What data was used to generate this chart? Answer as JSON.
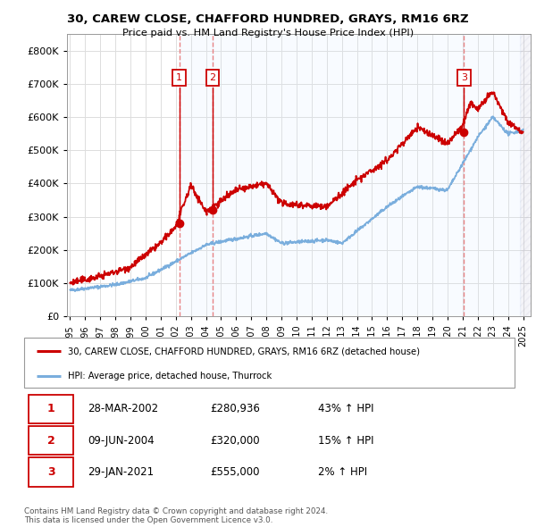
{
  "title": "30, CAREW CLOSE, CHAFFORD HUNDRED, GRAYS, RM16 6RZ",
  "subtitle": "Price paid vs. HM Land Registry's House Price Index (HPI)",
  "ylim": [
    0,
    850000
  ],
  "xlim": [
    1994.8,
    2025.5
  ],
  "yticks": [
    0,
    100000,
    200000,
    300000,
    400000,
    500000,
    600000,
    700000,
    800000
  ],
  "ytick_labels": [
    "£0",
    "£100K",
    "£200K",
    "£300K",
    "£400K",
    "£500K",
    "£600K",
    "£700K",
    "£800K"
  ],
  "sale_dates": [
    2002.23,
    2004.44,
    2021.08
  ],
  "sale_prices": [
    280936,
    320000,
    555000
  ],
  "sale_labels": [
    "1",
    "2",
    "3"
  ],
  "vline_color": "#e87070",
  "shade_color": "#ddeeff",
  "sale_color": "#cc0000",
  "hpi_color": "#7aaedd",
  "legend_sale_label": "30, CAREW CLOSE, CHAFFORD HUNDRED, GRAYS, RM16 6RZ (detached house)",
  "legend_hpi_label": "HPI: Average price, detached house, Thurrock",
  "table_rows": [
    [
      "1",
      "28-MAR-2002",
      "£280,936",
      "43% ↑ HPI"
    ],
    [
      "2",
      "09-JUN-2004",
      "£320,000",
      "15% ↑ HPI"
    ],
    [
      "3",
      "29-JAN-2021",
      "£555,000",
      "2% ↑ HPI"
    ]
  ],
  "footnote": "Contains HM Land Registry data © Crown copyright and database right 2024.\nThis data is licensed under the Open Government Licence v3.0.",
  "background_color": "#ffffff",
  "grid_color": "#dddddd",
  "hatch_end": 2025.5,
  "chart_end": 2024.8
}
